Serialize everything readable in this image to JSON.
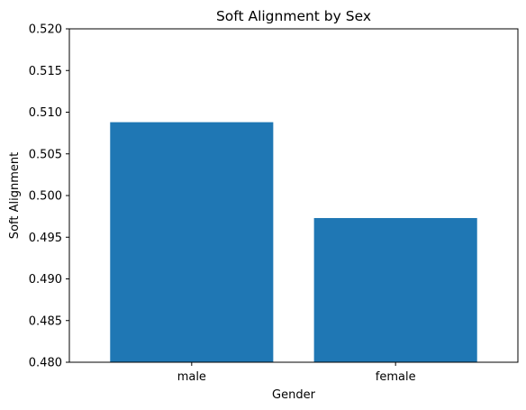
{
  "chart_data": {
    "type": "bar",
    "title": "Soft Alignment by Sex",
    "xlabel": "Gender",
    "ylabel": "Soft Alignment",
    "categories": [
      "male",
      "female"
    ],
    "values": [
      0.5088,
      0.4973
    ],
    "ylim": [
      0.48,
      0.52
    ],
    "yticks": [
      "0.480",
      "0.485",
      "0.490",
      "0.495",
      "0.500",
      "0.505",
      "0.510",
      "0.515",
      "0.520"
    ],
    "bar_color": "#1f77b4",
    "grid": false,
    "legend": "none"
  }
}
